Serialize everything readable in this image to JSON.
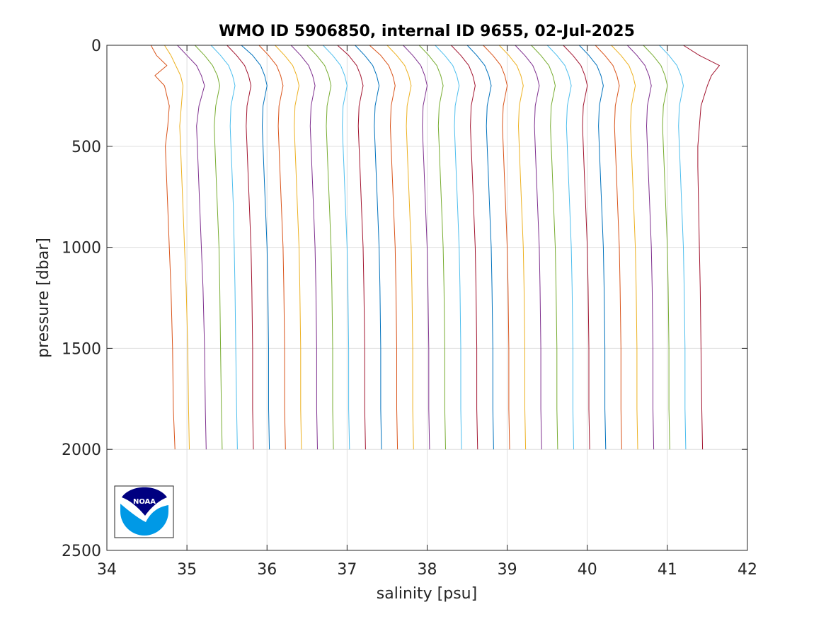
{
  "chart_data": {
    "type": "line",
    "title": "WMO ID 5906850, internal ID 9655, 02-Jul-2025",
    "xlabel": "salinity [psu]",
    "ylabel": "pressure [dbar]",
    "xlim": [
      34,
      42
    ],
    "ylim": [
      0,
      2500
    ],
    "y_reversed": true,
    "grid": true,
    "x_ticks": [
      "34",
      "35",
      "36",
      "37",
      "38",
      "39",
      "40",
      "41",
      "42"
    ],
    "y_ticks": [
      "0",
      "500",
      "1000",
      "1500",
      "2000",
      "2500"
    ],
    "colors": [
      "#D95319",
      "#EDB120",
      "#7E2F8E",
      "#77AC30",
      "#4DBEEE",
      "#A2142F",
      "#0072BD"
    ],
    "pressure_levels": [
      0,
      50,
      100,
      150,
      200,
      300,
      400,
      500,
      600,
      800,
      1000,
      1200,
      1500,
      1800,
      2000
    ],
    "profiles": [
      {
        "salinity": [
          34.55,
          34.62,
          34.75,
          34.6,
          34.72,
          34.78,
          34.76,
          34.73,
          34.74,
          34.76,
          34.78,
          34.8,
          34.82,
          34.83,
          34.85
        ]
      },
      {
        "salinity": [
          34.72,
          34.8,
          34.86,
          34.92,
          34.95,
          34.93,
          34.91,
          34.92,
          34.93,
          34.95,
          34.97,
          34.99,
          35.01,
          35.02,
          35.03
        ]
      },
      {
        "salinity": [
          34.88,
          35.0,
          35.12,
          35.18,
          35.22,
          35.15,
          35.12,
          35.13,
          35.14,
          35.16,
          35.18,
          35.2,
          35.22,
          35.23,
          35.24
        ]
      },
      {
        "salinity": [
          35.1,
          35.22,
          35.32,
          35.38,
          35.41,
          35.36,
          35.34,
          35.35,
          35.36,
          35.38,
          35.4,
          35.41,
          35.42,
          35.43,
          35.44
        ]
      },
      {
        "salinity": [
          35.3,
          35.42,
          35.52,
          35.57,
          35.6,
          35.55,
          35.54,
          35.55,
          35.56,
          35.58,
          35.59,
          35.6,
          35.61,
          35.62,
          35.63
        ]
      },
      {
        "salinity": [
          35.5,
          35.62,
          35.72,
          35.77,
          35.8,
          35.75,
          35.74,
          35.75,
          35.76,
          35.78,
          35.8,
          35.81,
          35.82,
          35.82,
          35.83
        ]
      },
      {
        "salinity": [
          35.68,
          35.82,
          35.92,
          35.97,
          36.0,
          35.95,
          35.94,
          35.95,
          35.96,
          35.98,
          36.0,
          36.01,
          36.02,
          36.02,
          36.03
        ]
      },
      {
        "salinity": [
          35.9,
          36.02,
          36.12,
          36.17,
          36.2,
          36.15,
          36.14,
          36.15,
          36.16,
          36.18,
          36.2,
          36.21,
          36.22,
          36.22,
          36.23
        ]
      },
      {
        "salinity": [
          36.1,
          36.22,
          36.32,
          36.37,
          36.4,
          36.35,
          36.34,
          36.35,
          36.36,
          36.38,
          36.4,
          36.41,
          36.42,
          36.42,
          36.43
        ]
      },
      {
        "salinity": [
          36.3,
          36.42,
          36.52,
          36.57,
          36.6,
          36.55,
          36.54,
          36.55,
          36.56,
          36.58,
          36.6,
          36.61,
          36.62,
          36.62,
          36.63
        ]
      },
      {
        "salinity": [
          36.5,
          36.62,
          36.72,
          36.77,
          36.8,
          36.75,
          36.74,
          36.75,
          36.76,
          36.78,
          36.8,
          36.81,
          36.82,
          36.82,
          36.83
        ]
      },
      {
        "salinity": [
          36.7,
          36.82,
          36.92,
          36.97,
          37.0,
          36.95,
          36.94,
          36.95,
          36.96,
          36.98,
          37.0,
          37.01,
          37.02,
          37.02,
          37.03
        ]
      },
      {
        "salinity": [
          36.88,
          37.02,
          37.12,
          37.17,
          37.2,
          37.15,
          37.14,
          37.15,
          37.16,
          37.18,
          37.2,
          37.21,
          37.22,
          37.22,
          37.23
        ]
      },
      {
        "salinity": [
          37.1,
          37.22,
          37.32,
          37.37,
          37.4,
          37.35,
          37.34,
          37.35,
          37.36,
          37.38,
          37.4,
          37.41,
          37.42,
          37.42,
          37.43
        ]
      },
      {
        "salinity": [
          37.28,
          37.42,
          37.52,
          37.57,
          37.6,
          37.55,
          37.54,
          37.55,
          37.56,
          37.58,
          37.6,
          37.61,
          37.62,
          37.62,
          37.63
        ]
      },
      {
        "salinity": [
          37.5,
          37.62,
          37.72,
          37.77,
          37.8,
          37.75,
          37.74,
          37.75,
          37.76,
          37.78,
          37.8,
          37.81,
          37.82,
          37.82,
          37.83
        ]
      },
      {
        "salinity": [
          37.7,
          37.82,
          37.92,
          37.97,
          38.0,
          37.95,
          37.94,
          37.95,
          37.96,
          37.98,
          38.0,
          38.01,
          38.02,
          38.02,
          38.03
        ]
      },
      {
        "salinity": [
          37.9,
          38.02,
          38.12,
          38.17,
          38.2,
          38.15,
          38.14,
          38.15,
          38.16,
          38.18,
          38.2,
          38.21,
          38.22,
          38.22,
          38.23
        ]
      },
      {
        "salinity": [
          38.1,
          38.22,
          38.32,
          38.37,
          38.4,
          38.35,
          38.34,
          38.35,
          38.36,
          38.38,
          38.4,
          38.41,
          38.42,
          38.42,
          38.43
        ]
      },
      {
        "salinity": [
          38.3,
          38.42,
          38.52,
          38.57,
          38.6,
          38.55,
          38.54,
          38.55,
          38.56,
          38.58,
          38.6,
          38.61,
          38.62,
          38.62,
          38.63
        ]
      },
      {
        "salinity": [
          38.5,
          38.62,
          38.72,
          38.77,
          38.8,
          38.75,
          38.74,
          38.75,
          38.76,
          38.78,
          38.8,
          38.81,
          38.82,
          38.82,
          38.83
        ]
      },
      {
        "salinity": [
          38.7,
          38.82,
          38.92,
          38.97,
          39.0,
          38.95,
          38.94,
          38.95,
          38.96,
          38.98,
          39.0,
          39.01,
          39.02,
          39.02,
          39.03
        ]
      },
      {
        "salinity": [
          38.9,
          39.02,
          39.12,
          39.17,
          39.2,
          39.15,
          39.14,
          39.15,
          39.16,
          39.18,
          39.2,
          39.21,
          39.22,
          39.22,
          39.23
        ]
      },
      {
        "salinity": [
          39.1,
          39.22,
          39.32,
          39.37,
          39.4,
          39.35,
          39.34,
          39.35,
          39.36,
          39.38,
          39.4,
          39.41,
          39.42,
          39.42,
          39.43
        ]
      },
      {
        "salinity": [
          39.3,
          39.42,
          39.52,
          39.57,
          39.6,
          39.55,
          39.54,
          39.55,
          39.56,
          39.58,
          39.6,
          39.61,
          39.62,
          39.62,
          39.63
        ]
      },
      {
        "salinity": [
          39.5,
          39.62,
          39.72,
          39.77,
          39.8,
          39.75,
          39.74,
          39.75,
          39.76,
          39.78,
          39.8,
          39.81,
          39.82,
          39.82,
          39.83
        ]
      },
      {
        "salinity": [
          39.7,
          39.82,
          39.92,
          39.97,
          40.0,
          39.95,
          39.94,
          39.95,
          39.96,
          39.98,
          40.0,
          40.01,
          40.02,
          40.02,
          40.03
        ]
      },
      {
        "salinity": [
          39.9,
          40.02,
          40.12,
          40.17,
          40.2,
          40.15,
          40.14,
          40.15,
          40.16,
          40.18,
          40.2,
          40.21,
          40.22,
          40.22,
          40.23
        ]
      },
      {
        "salinity": [
          40.1,
          40.22,
          40.32,
          40.37,
          40.4,
          40.35,
          40.34,
          40.35,
          40.36,
          40.38,
          40.4,
          40.41,
          40.42,
          40.42,
          40.43
        ]
      },
      {
        "salinity": [
          40.3,
          40.42,
          40.52,
          40.57,
          40.6,
          40.55,
          40.54,
          40.55,
          40.56,
          40.58,
          40.6,
          40.61,
          40.62,
          40.62,
          40.63
        ]
      },
      {
        "salinity": [
          40.5,
          40.62,
          40.72,
          40.77,
          40.8,
          40.75,
          40.74,
          40.75,
          40.76,
          40.78,
          40.8,
          40.81,
          40.82,
          40.82,
          40.83
        ]
      },
      {
        "salinity": [
          40.7,
          40.82,
          40.92,
          40.97,
          41.0,
          40.95,
          40.94,
          40.95,
          40.96,
          40.98,
          41.0,
          41.01,
          41.02,
          41.02,
          41.03
        ]
      },
      {
        "salinity": [
          40.9,
          41.02,
          41.12,
          41.17,
          41.2,
          41.15,
          41.14,
          41.15,
          41.16,
          41.18,
          41.2,
          41.21,
          41.22,
          41.22,
          41.23
        ]
      },
      {
        "salinity": [
          41.2,
          41.4,
          41.65,
          41.55,
          41.5,
          41.42,
          41.4,
          41.38,
          41.38,
          41.39,
          41.4,
          41.41,
          41.42,
          41.43,
          41.44
        ]
      }
    ]
  },
  "logo": {
    "text": "NOAA",
    "colors": {
      "navy": "#000080",
      "sky": "#0099e6"
    }
  }
}
